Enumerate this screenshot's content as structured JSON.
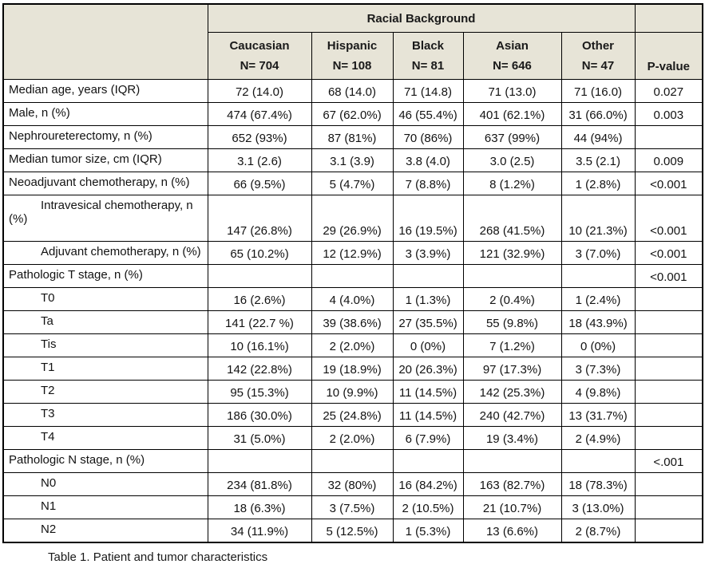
{
  "colors": {
    "header_bg": "#e7e4d7",
    "border": "#000000",
    "text": "#1a1a1a"
  },
  "table": {
    "group_header": "Racial Background",
    "pvalue_header": "P-value",
    "columns": [
      {
        "label": "Caucasian",
        "n": "N= 704"
      },
      {
        "label": "Hispanic",
        "n": "N= 108"
      },
      {
        "label": "Black",
        "n": "N= 81"
      },
      {
        "label": "Asian",
        "n": "N= 646"
      },
      {
        "label": "Other",
        "n": "N= 47"
      }
    ],
    "rows": [
      {
        "label": "Median age, years (IQR)",
        "indent": false,
        "tall": false,
        "values": [
          "72 (14.0)",
          "68 (14.0)",
          "71 (14.8)",
          "71 (13.0)",
          "71 (16.0)"
        ],
        "p": "0.027"
      },
      {
        "label": "Male, n (%)",
        "indent": false,
        "tall": false,
        "values": [
          "474 (67.4%)",
          "67 (62.0%)",
          "46 (55.4%)",
          "401 (62.1%)",
          "31 (66.0%)"
        ],
        "p": "0.003"
      },
      {
        "label": "Nephroureterectomy, n (%)",
        "indent": false,
        "tall": false,
        "values": [
          "652 (93%)",
          "87 (81%)",
          "70 (86%)",
          "637 (99%)",
          "44 (94%)"
        ],
        "p": ""
      },
      {
        "label": "Median tumor size, cm (IQR)",
        "indent": false,
        "tall": false,
        "values": [
          "3.1 (2.6)",
          "3.1 (3.9)",
          "3.8 (4.0)",
          "3.0 (2.5)",
          "3.5 (2.1)"
        ],
        "p": "0.009"
      },
      {
        "label": "Neoadjuvant chemotherapy, n (%)",
        "indent": false,
        "tall": false,
        "values": [
          "66 (9.5%)",
          "5 (4.7%)",
          "7 (8.8%)",
          "8 (1.2%)",
          "1 (2.8%)"
        ],
        "p": "<0.001"
      },
      {
        "label": "Intravesical chemotherapy, n (%)",
        "indent": true,
        "tall": true,
        "values": [
          "147 (26.8%)",
          "29 (26.9%)",
          "16 (19.5%)",
          "268 (41.5%)",
          "10 (21.3%)"
        ],
        "p": "<0.001"
      },
      {
        "label": "Adjuvant chemotherapy, n (%)",
        "indent": true,
        "tall": false,
        "values": [
          "65 (10.2%)",
          "12 (12.9%)",
          "3 (3.9%)",
          "121 (32.9%)",
          "3 (7.0%)"
        ],
        "p": "<0.001"
      },
      {
        "label": "Pathologic T stage, n (%)",
        "indent": false,
        "tall": false,
        "values": [
          "",
          "",
          "",
          "",
          ""
        ],
        "p": "<0.001"
      },
      {
        "label": "T0",
        "indent": true,
        "tall": false,
        "values": [
          "16 (2.6%)",
          "4 (4.0%)",
          "1 (1.3%)",
          "2 (0.4%)",
          "1 (2.4%)"
        ],
        "p": ""
      },
      {
        "label": "Ta",
        "indent": true,
        "tall": false,
        "values": [
          "141 (22.7 %)",
          "39 (38.6%)",
          "27 (35.5%)",
          "55 (9.8%)",
          "18 (43.9%)"
        ],
        "p": ""
      },
      {
        "label": "Tis",
        "indent": true,
        "tall": false,
        "values": [
          "10 (16.1%)",
          "2 (2.0%)",
          "0 (0%)",
          "7 (1.2%)",
          "0 (0%)"
        ],
        "p": ""
      },
      {
        "label": "T1",
        "indent": true,
        "tall": false,
        "values": [
          "142 (22.8%)",
          "19 (18.9%)",
          "20 (26.3%)",
          "97 (17.3%)",
          "3 (7.3%)"
        ],
        "p": ""
      },
      {
        "label": "T2",
        "indent": true,
        "tall": false,
        "values": [
          "95 (15.3%)",
          "10 (9.9%)",
          "11 (14.5%)",
          "142 (25.3%)",
          "4 (9.8%)"
        ],
        "p": ""
      },
      {
        "label": "T3",
        "indent": true,
        "tall": false,
        "values": [
          "186 (30.0%)",
          "25 (24.8%)",
          "11 (14.5%)",
          "240 (42.7%)",
          "13 (31.7%)"
        ],
        "p": ""
      },
      {
        "label": "T4",
        "indent": true,
        "tall": false,
        "values": [
          "31 (5.0%)",
          "2 (2.0%)",
          "6 (7.9%)",
          "19 (3.4%)",
          "2 (4.9%)"
        ],
        "p": ""
      },
      {
        "label": "Pathologic N stage, n (%)",
        "indent": false,
        "tall": false,
        "values": [
          "",
          "",
          "",
          "",
          ""
        ],
        "p": "<.001"
      },
      {
        "label": "N0",
        "indent": true,
        "tall": false,
        "values": [
          "234 (81.8%)",
          "32 (80%)",
          "16 (84.2%)",
          "163 (82.7%)",
          "18 (78.3%)"
        ],
        "p": ""
      },
      {
        "label": "N1",
        "indent": true,
        "tall": false,
        "values": [
          "18 (6.3%)",
          "3 (7.5%)",
          "2 (10.5%)",
          "21 (10.7%)",
          "3 (13.0%)"
        ],
        "p": ""
      },
      {
        "label": "N2",
        "indent": true,
        "tall": false,
        "values": [
          "34 (11.9%)",
          "5 (12.5%)",
          "1 (5.3%)",
          "13 (6.6%)",
          "2 (8.7%)"
        ],
        "p": ""
      }
    ]
  },
  "caption": "Table 1. Patient and tumor characteristics"
}
